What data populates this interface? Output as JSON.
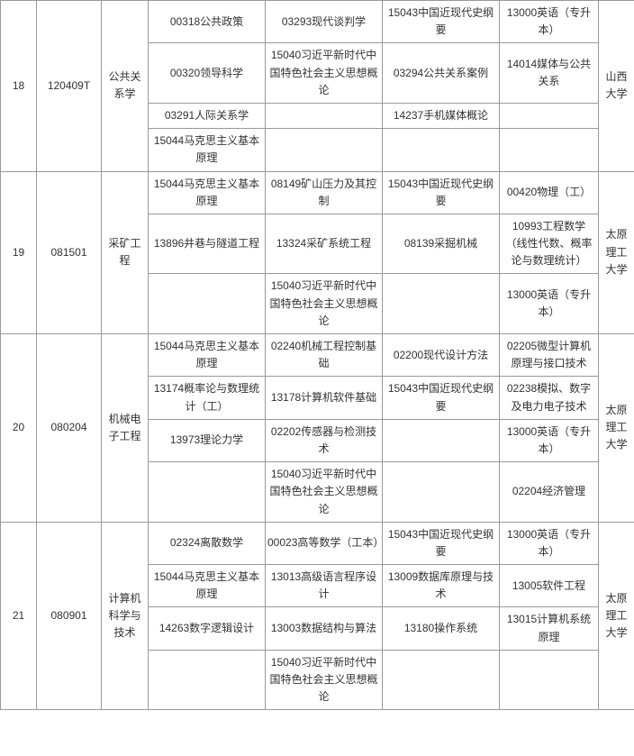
{
  "rows": [
    {
      "no": "18",
      "code": "120409T",
      "major": "公共关系学",
      "school": "山西大学",
      "lines": [
        {
          "c3": "00318公共政策",
          "c4": "03293现代谈判学",
          "c5": "15043中国近现代史纲要",
          "c6": "13000英语（专升本）"
        },
        {
          "c3": "00320领导科学",
          "c4": "15040习近平新时代中国特色社会主义思想概论",
          "c5": "03294公共关系案例",
          "c6": "14014媒体与公共关系"
        },
        {
          "c3": "03291人际关系学",
          "c4": "",
          "c5": "14237手机媒体概论",
          "c6": ""
        },
        {
          "c3": "15044马克思主义基本原理",
          "c4": "",
          "c5": "",
          "c6": ""
        }
      ]
    },
    {
      "no": "19",
      "code": "081501",
      "major": "采矿工程",
      "school": "太原理工大学",
      "lines": [
        {
          "c3": "15044马克思主义基本原理",
          "c4": "08149矿山压力及其控制",
          "c5": "15043中国近现代史纲要",
          "c6": "00420物理（工）"
        },
        {
          "c3": "13896井巷与隧道工程",
          "c4": "13324采矿系统工程",
          "c5": "08139采掘机械",
          "c6": "10993工程数学（线性代数、概率论与数理统计）"
        },
        {
          "c3": "",
          "c4": "15040习近平新时代中国特色社会主义思想概论",
          "c5": "",
          "c6": "13000英语（专升本）"
        }
      ]
    },
    {
      "no": "20",
      "code": "080204",
      "major": "机械电子工程",
      "school": "太原理工大学",
      "lines": [
        {
          "c3": "15044马克思主义基本原理",
          "c4": "02240机械工程控制基础",
          "c5": "02200现代设计方法",
          "c6": "02205微型计算机原理与接口技术"
        },
        {
          "c3": "13174概率论与数理统计（工）",
          "c4": "13178计算机软件基础",
          "c5": "15043中国近现代史纲要",
          "c6": "02238模拟、数字及电力电子技术"
        },
        {
          "c3": "13973理论力学",
          "c4": "02202传感器与检测技术",
          "c5": "",
          "c6": "13000英语（专升本）"
        },
        {
          "c3": "",
          "c4": "15040习近平新时代中国特色社会主义思想概论",
          "c5": "",
          "c6": "02204经济管理"
        }
      ]
    },
    {
      "no": "21",
      "code": "080901",
      "major": "计算机科学与技术",
      "school": "太原理工大学",
      "lines": [
        {
          "c3": "02324离散数学",
          "c4": "00023高等数学（工本）",
          "c5": "15043中国近现代史纲要",
          "c6": "13000英语（专升本）"
        },
        {
          "c3": "15044马克思主义基本原理",
          "c4": "13013高级语言程序设计",
          "c5": "13009数据库原理与技术",
          "c6": "13005软件工程"
        },
        {
          "c3": "14263数字逻辑设计",
          "c4": "13003数据结构与算法",
          "c5": "13180操作系统",
          "c6": "13015计算机系统原理"
        },
        {
          "c3": "",
          "c4": "15040习近平新时代中国特色社会主义思想概论",
          "c5": "",
          "c6": ""
        }
      ]
    }
  ]
}
